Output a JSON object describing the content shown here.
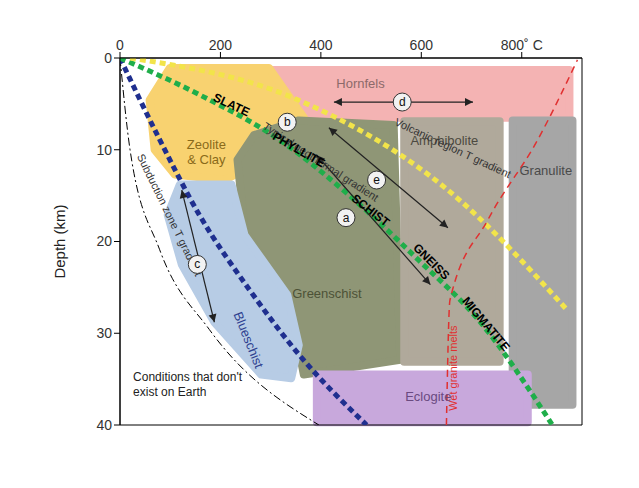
{
  "chart_data": {
    "type": "facies_diagram",
    "y_label": "Depth (km)",
    "xlim": [
      0,
      920
    ],
    "xticks": [
      0,
      200,
      400,
      600,
      {
        "value": 800,
        "label": "800˚ C"
      }
    ],
    "ylim": [
      0,
      40
    ],
    "yticks": [
      0,
      10,
      20,
      30,
      40
    ],
    "grid": false,
    "regions": [
      {
        "name": "Hornfels",
        "color": "#f4b3b3",
        "points": [
          [
            281,
            1.3
          ],
          [
            895,
            1.3
          ],
          [
            895,
            6.5
          ],
          [
            281,
            6.5
          ]
        ],
        "label_at": [
          479,
          2.7
        ]
      },
      {
        "name": [
          "Zeolite",
          "& Clay"
        ],
        "color": "#f8d270",
        "points": [
          [
            99,
            1.1
          ],
          [
            297,
            1.1
          ],
          [
            366,
            6.5
          ],
          [
            297,
            8.4
          ],
          [
            267,
            11.7
          ],
          [
            208,
            13.3
          ],
          [
            109,
            12.7
          ],
          [
            69,
            10.0
          ],
          [
            59,
            4.6
          ]
        ],
        "label_at": [
          172,
          10.2
        ]
      },
      {
        "name": "Greenschist",
        "color": "#8f9676",
        "points": [
          [
            267,
            8.4
          ],
          [
            356,
            6.8
          ],
          [
            545,
            7.3
          ],
          [
            558,
            32.9
          ],
          [
            366,
            34.5
          ],
          [
            337,
            26.4
          ],
          [
            248,
            18.7
          ],
          [
            234,
            11.1
          ]
        ],
        "label_at": [
          412,
          25.6
        ]
      },
      {
        "name": "Amphibolite",
        "color": "#b0a99b",
        "points": [
          [
            566,
            6.9
          ],
          [
            756,
            6.9
          ],
          [
            756,
            33.1
          ],
          [
            566,
            33.1
          ]
        ],
        "label_at": [
          646,
          8.9
        ]
      },
      {
        "name": "Granulite",
        "color": "#a6a6a6",
        "points": [
          [
            782,
            6.8
          ],
          [
            901,
            6.8
          ],
          [
            901,
            37.8
          ],
          [
            782,
            37.8
          ]
        ],
        "label_at": [
          848,
          12.2
        ]
      },
      {
        "name": "Blueschist",
        "color": "#b7cce5",
        "points": [
          [
            119,
            13.8
          ],
          [
            222,
            13.8
          ],
          [
            248,
            19.3
          ],
          [
            333,
            25.8
          ],
          [
            356,
            31.3
          ],
          [
            341,
            34.9
          ],
          [
            281,
            34.5
          ],
          [
            188,
            28.8
          ],
          [
            123,
            22.5
          ],
          [
            95,
            17.1
          ]
        ],
        "label_at": [
          257,
          30.7
        ]
      },
      {
        "name": "Eclogite",
        "color": "#c8a8dc",
        "points": [
          [
            392,
            34.5
          ],
          [
            812,
            34.5
          ],
          [
            812,
            39.7
          ],
          [
            392,
            39.7
          ]
        ],
        "label_at": [
          614,
          36.8
        ]
      }
    ],
    "series": [
      {
        "color": "#000000",
        "line_style": "dashdot",
        "x": [
          0,
          20,
          79,
          178,
          396
        ],
        "values": [
          0,
          10.0,
          20.9,
          29.6,
          40
        ]
      },
      {
        "name": "Subduction zone T gradient",
        "color": "#1f2f8f",
        "line_style": "dotted",
        "x": [
          0,
          79,
          158,
          257,
          356,
          491
        ],
        "values": [
          0,
          8.9,
          17.1,
          25.2,
          32.3,
          40
        ],
        "label_at": [
          99,
          17.1
        ]
      },
      {
        "name": "Typical geothermal gradient",
        "color": "#1fae4a",
        "line_style": "dotted",
        "x": [
          0,
          158,
          317,
          455,
          594,
          713,
          861
        ],
        "values": [
          0,
          4.0,
          8.9,
          14.9,
          22.0,
          28.5,
          40
        ],
        "label_at": [
          400,
          11.3
        ]
      },
      {
        "name": "Volcanic region T gradient",
        "color": "#f2e44a",
        "line_style": "dotted",
        "x": [
          20,
          356,
          653,
          891
        ],
        "values": [
          0,
          4.6,
          14.4,
          27.5
        ],
        "label_at": [
          663,
          9.8
        ]
      },
      {
        "name": "Wet granite melts",
        "color": "#e03030",
        "line_style": "dashed",
        "x": [
          650,
          657,
          733,
          832,
          911
        ],
        "values": [
          40,
          26.4,
          17.6,
          8.9,
          0.2
        ],
        "label_at": [
          663,
          33.8
        ]
      }
    ],
    "rock_labels": [
      {
        "text": "SLATE",
        "at": [
          222,
          5.1
        ]
      },
      {
        "text": "PHYLLITE",
        "at": [
          356,
          10.0
        ]
      },
      {
        "text": "SCHIST",
        "at": [
          499,
          16.6
        ]
      },
      {
        "text": "GNEISS",
        "at": [
          620,
          22.2
        ]
      },
      {
        "text": "MIGMATITE",
        "at": [
          729,
          29.0
        ]
      }
    ],
    "arrows": [
      {
        "label": "a",
        "from": [
          392,
          10.6
        ],
        "to": [
          618,
          24.7
        ],
        "label_at": [
          450,
          17.4
        ]
      },
      {
        "label": "b",
        "label_at": [
          333,
          7.0
        ]
      },
      {
        "label": "c",
        "from": [
          123,
          14.4
        ],
        "to": [
          188,
          28.8
        ],
        "label_at": [
          154,
          22.5
        ]
      },
      {
        "label": "d",
        "from": [
          426,
          4.8
        ],
        "to": [
          703,
          4.8
        ],
        "label_at": [
          562,
          4.8
        ]
      },
      {
        "label": "e",
        "from": [
          416,
          7.6
        ],
        "to": [
          653,
          18.5
        ],
        "label_at": [
          511,
          13.3
        ]
      }
    ],
    "notes": [
      {
        "text": [
          "Conditions that don't",
          "exist on Earth"
        ],
        "at": [
          26,
          35.6
        ]
      }
    ]
  }
}
